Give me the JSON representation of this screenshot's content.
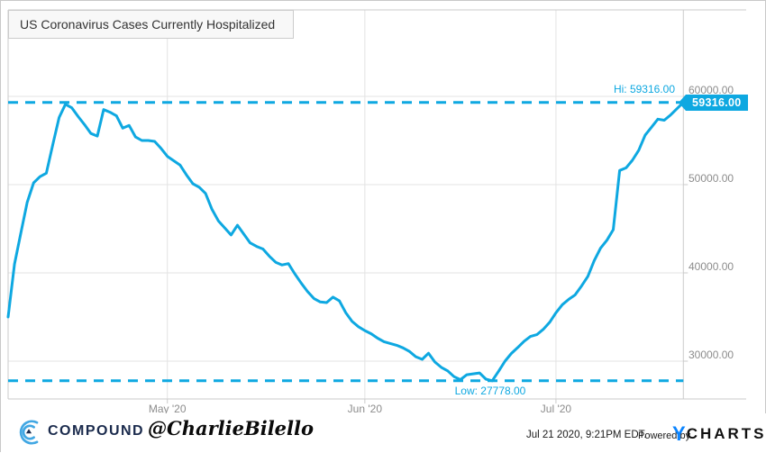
{
  "title": "US Coronavirus Cases Currently Hospitalized",
  "annotations": {
    "hi_label": "Hi: 59316.00",
    "low_label": "Low: 27778.00",
    "value_tag": "59316.00"
  },
  "colors": {
    "line": "#0ea8e1",
    "grid": "#e3e3e3",
    "border": "#cbcbcb",
    "axis_text": "#8c8c8c",
    "compound_navy": "#1b2b4d",
    "compound_blue": "#41a7e3",
    "ycharts_blue": "#0a84ff"
  },
  "y_axis": {
    "ticks": [
      {
        "label": "60000.00",
        "value": 60000
      },
      {
        "label": "50000.00",
        "value": 50000
      },
      {
        "label": "40000.00",
        "value": 40000
      },
      {
        "label": "30000.00",
        "value": 30000
      }
    ]
  },
  "x_axis": {
    "ticks": [
      {
        "label": "May '20",
        "day": 25
      },
      {
        "label": "Jun '20",
        "day": 56
      },
      {
        "label": "Jul '20",
        "day": 86
      }
    ]
  },
  "footer": {
    "brand": "COMPOUND",
    "handle": "@CharlieBilello",
    "timestamp": "Jul 21 2020, 9:21PM EDT.",
    "powered_by": "Powered by",
    "ycharts_y": "Y",
    "ycharts_rest": "CHARTS"
  },
  "chart_data": {
    "type": "line",
    "title": "US Coronavirus Cases Currently Hospitalized",
    "start_date": "2020-04-06",
    "end_date": "2020-07-21",
    "frequency": "daily",
    "hi": 59316.0,
    "low": 27778.0,
    "last": 59316.0,
    "y_gridlines": [
      60000,
      50000,
      40000,
      30000
    ],
    "x_gridlines": [
      "2020-05-01",
      "2020-06-01",
      "2020-07-01"
    ],
    "grid": true,
    "legend": false,
    "values": [
      35000,
      41000,
      44500,
      48000,
      50200,
      50900,
      51300,
      54500,
      57600,
      59100,
      58700,
      57700,
      56800,
      55800,
      55500,
      58500,
      58200,
      57800,
      56400,
      56700,
      55400,
      55000,
      55000,
      54900,
      54100,
      53200,
      52700,
      52200,
      51100,
      50100,
      49700,
      49000,
      47200,
      45900,
      45100,
      44300,
      45400,
      44400,
      43400,
      43000,
      42700,
      41900,
      41200,
      40900,
      41050,
      39900,
      38850,
      37900,
      37100,
      36700,
      36630,
      37260,
      36830,
      35500,
      34500,
      33900,
      33460,
      33100,
      32600,
      32200,
      32000,
      31800,
      31500,
      31100,
      30500,
      30200,
      30900,
      29900,
      29300,
      28900,
      28240,
      27900,
      28460,
      28560,
      28660,
      27960,
      27778,
      28860,
      30000,
      30870,
      31540,
      32250,
      32800,
      33000,
      33600,
      34400,
      35480,
      36400,
      37000,
      37500,
      38500,
      39600,
      41370,
      42800,
      43700,
      44900,
      51600,
      51900,
      52760,
      53900,
      55600,
      56510,
      57420,
      57300,
      57900,
      58600,
      59316
    ]
  }
}
